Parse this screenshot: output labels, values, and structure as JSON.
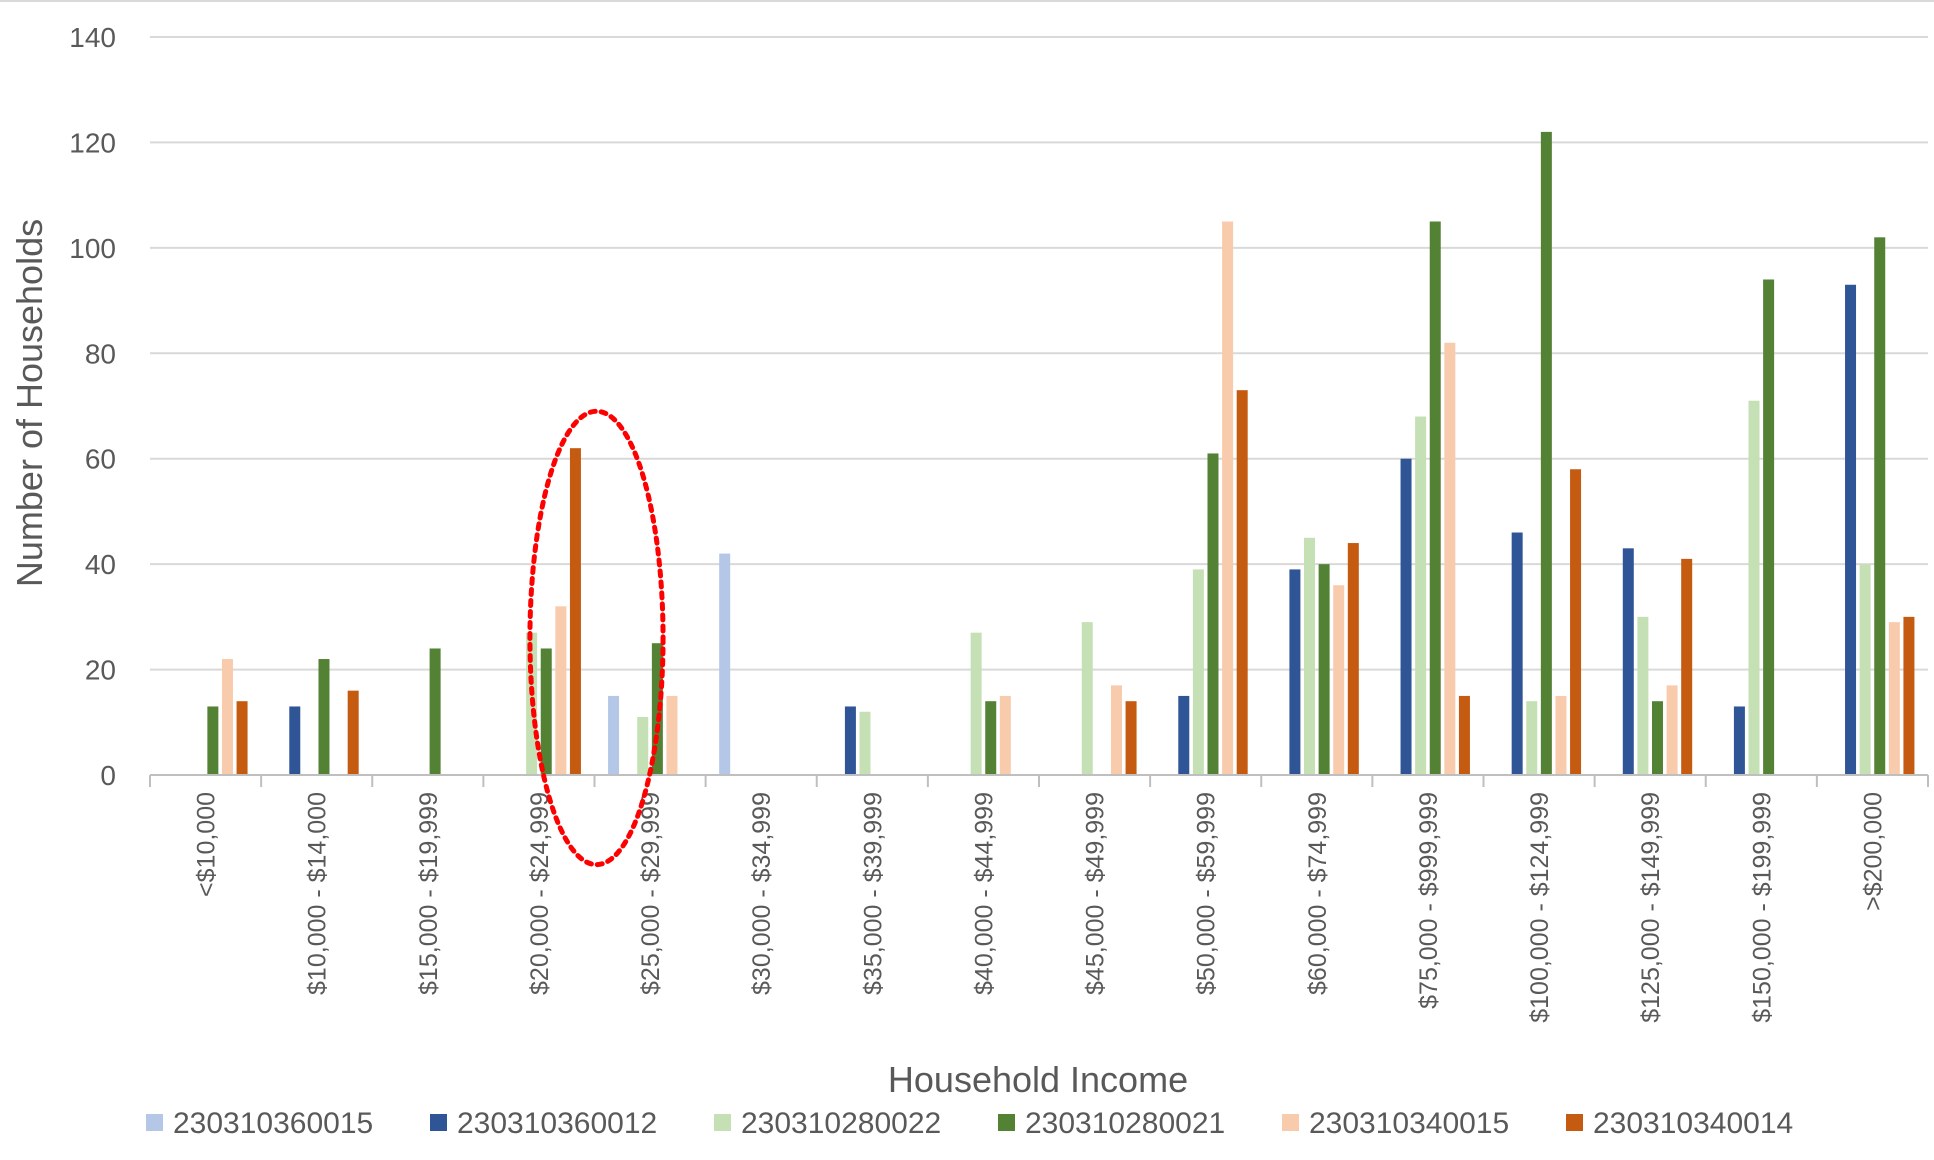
{
  "chart_data": {
    "type": "bar",
    "title": "",
    "xlabel": "Household Income",
    "ylabel": "Number of Households",
    "ylim": [
      0,
      140
    ],
    "yticks": [
      0,
      20,
      40,
      60,
      80,
      100,
      120,
      140
    ],
    "grid": true,
    "legend_position": "bottom",
    "categories": [
      "<$10,000",
      "$10,000 - $14,000",
      "$15,000 - $19,999",
      "$20,000 - $24,999",
      "$25,000 - $29,999",
      "$30,000 - $34,999",
      "$35,000 - $39,999",
      "$40,000 - $44,999",
      "$45,000 - $49,999",
      "$50,000 - $59,999",
      "$60,000 - $74,999",
      "$75,000 - $999,999",
      "$100,000 - $124,999",
      "$125,000 - $149,999",
      "$150,000 - $199,999",
      ">$200,000"
    ],
    "series": [
      {
        "name": "230310360015",
        "color": "#b4c7e7",
        "values": [
          0,
          0,
          0,
          0,
          15,
          42,
          0,
          0,
          0,
          0,
          0,
          0,
          0,
          0,
          0,
          0
        ]
      },
      {
        "name": "230310360012",
        "color": "#2f5597",
        "values": [
          0,
          13,
          0,
          0,
          0,
          0,
          13,
          0,
          0,
          15,
          39,
          60,
          46,
          43,
          13,
          93
        ]
      },
      {
        "name": "230310280022",
        "color": "#c5e0b4",
        "values": [
          0,
          0,
          0,
          27,
          11,
          0,
          12,
          27,
          29,
          39,
          45,
          68,
          14,
          30,
          71,
          40
        ]
      },
      {
        "name": "230310280021",
        "color": "#548235",
        "values": [
          13,
          22,
          24,
          24,
          25,
          0,
          0,
          14,
          0,
          61,
          40,
          105,
          122,
          14,
          94,
          102
        ]
      },
      {
        "name": "230310340015",
        "color": "#f8cbad",
        "values": [
          22,
          0,
          0,
          32,
          15,
          0,
          0,
          15,
          17,
          105,
          36,
          82,
          15,
          17,
          0,
          29
        ]
      },
      {
        "name": "230310340014",
        "color": "#c55a11",
        "values": [
          14,
          16,
          0,
          62,
          0,
          0,
          0,
          0,
          14,
          73,
          44,
          15,
          58,
          41,
          0,
          30
        ]
      }
    ],
    "annotations": [
      {
        "type": "dotted-ellipse",
        "color": "#ff0000",
        "category_range": [
          "$20,000 - $24,999",
          "$25,000 - $29,999"
        ],
        "y_range": [
          -17,
          69
        ]
      }
    ]
  }
}
